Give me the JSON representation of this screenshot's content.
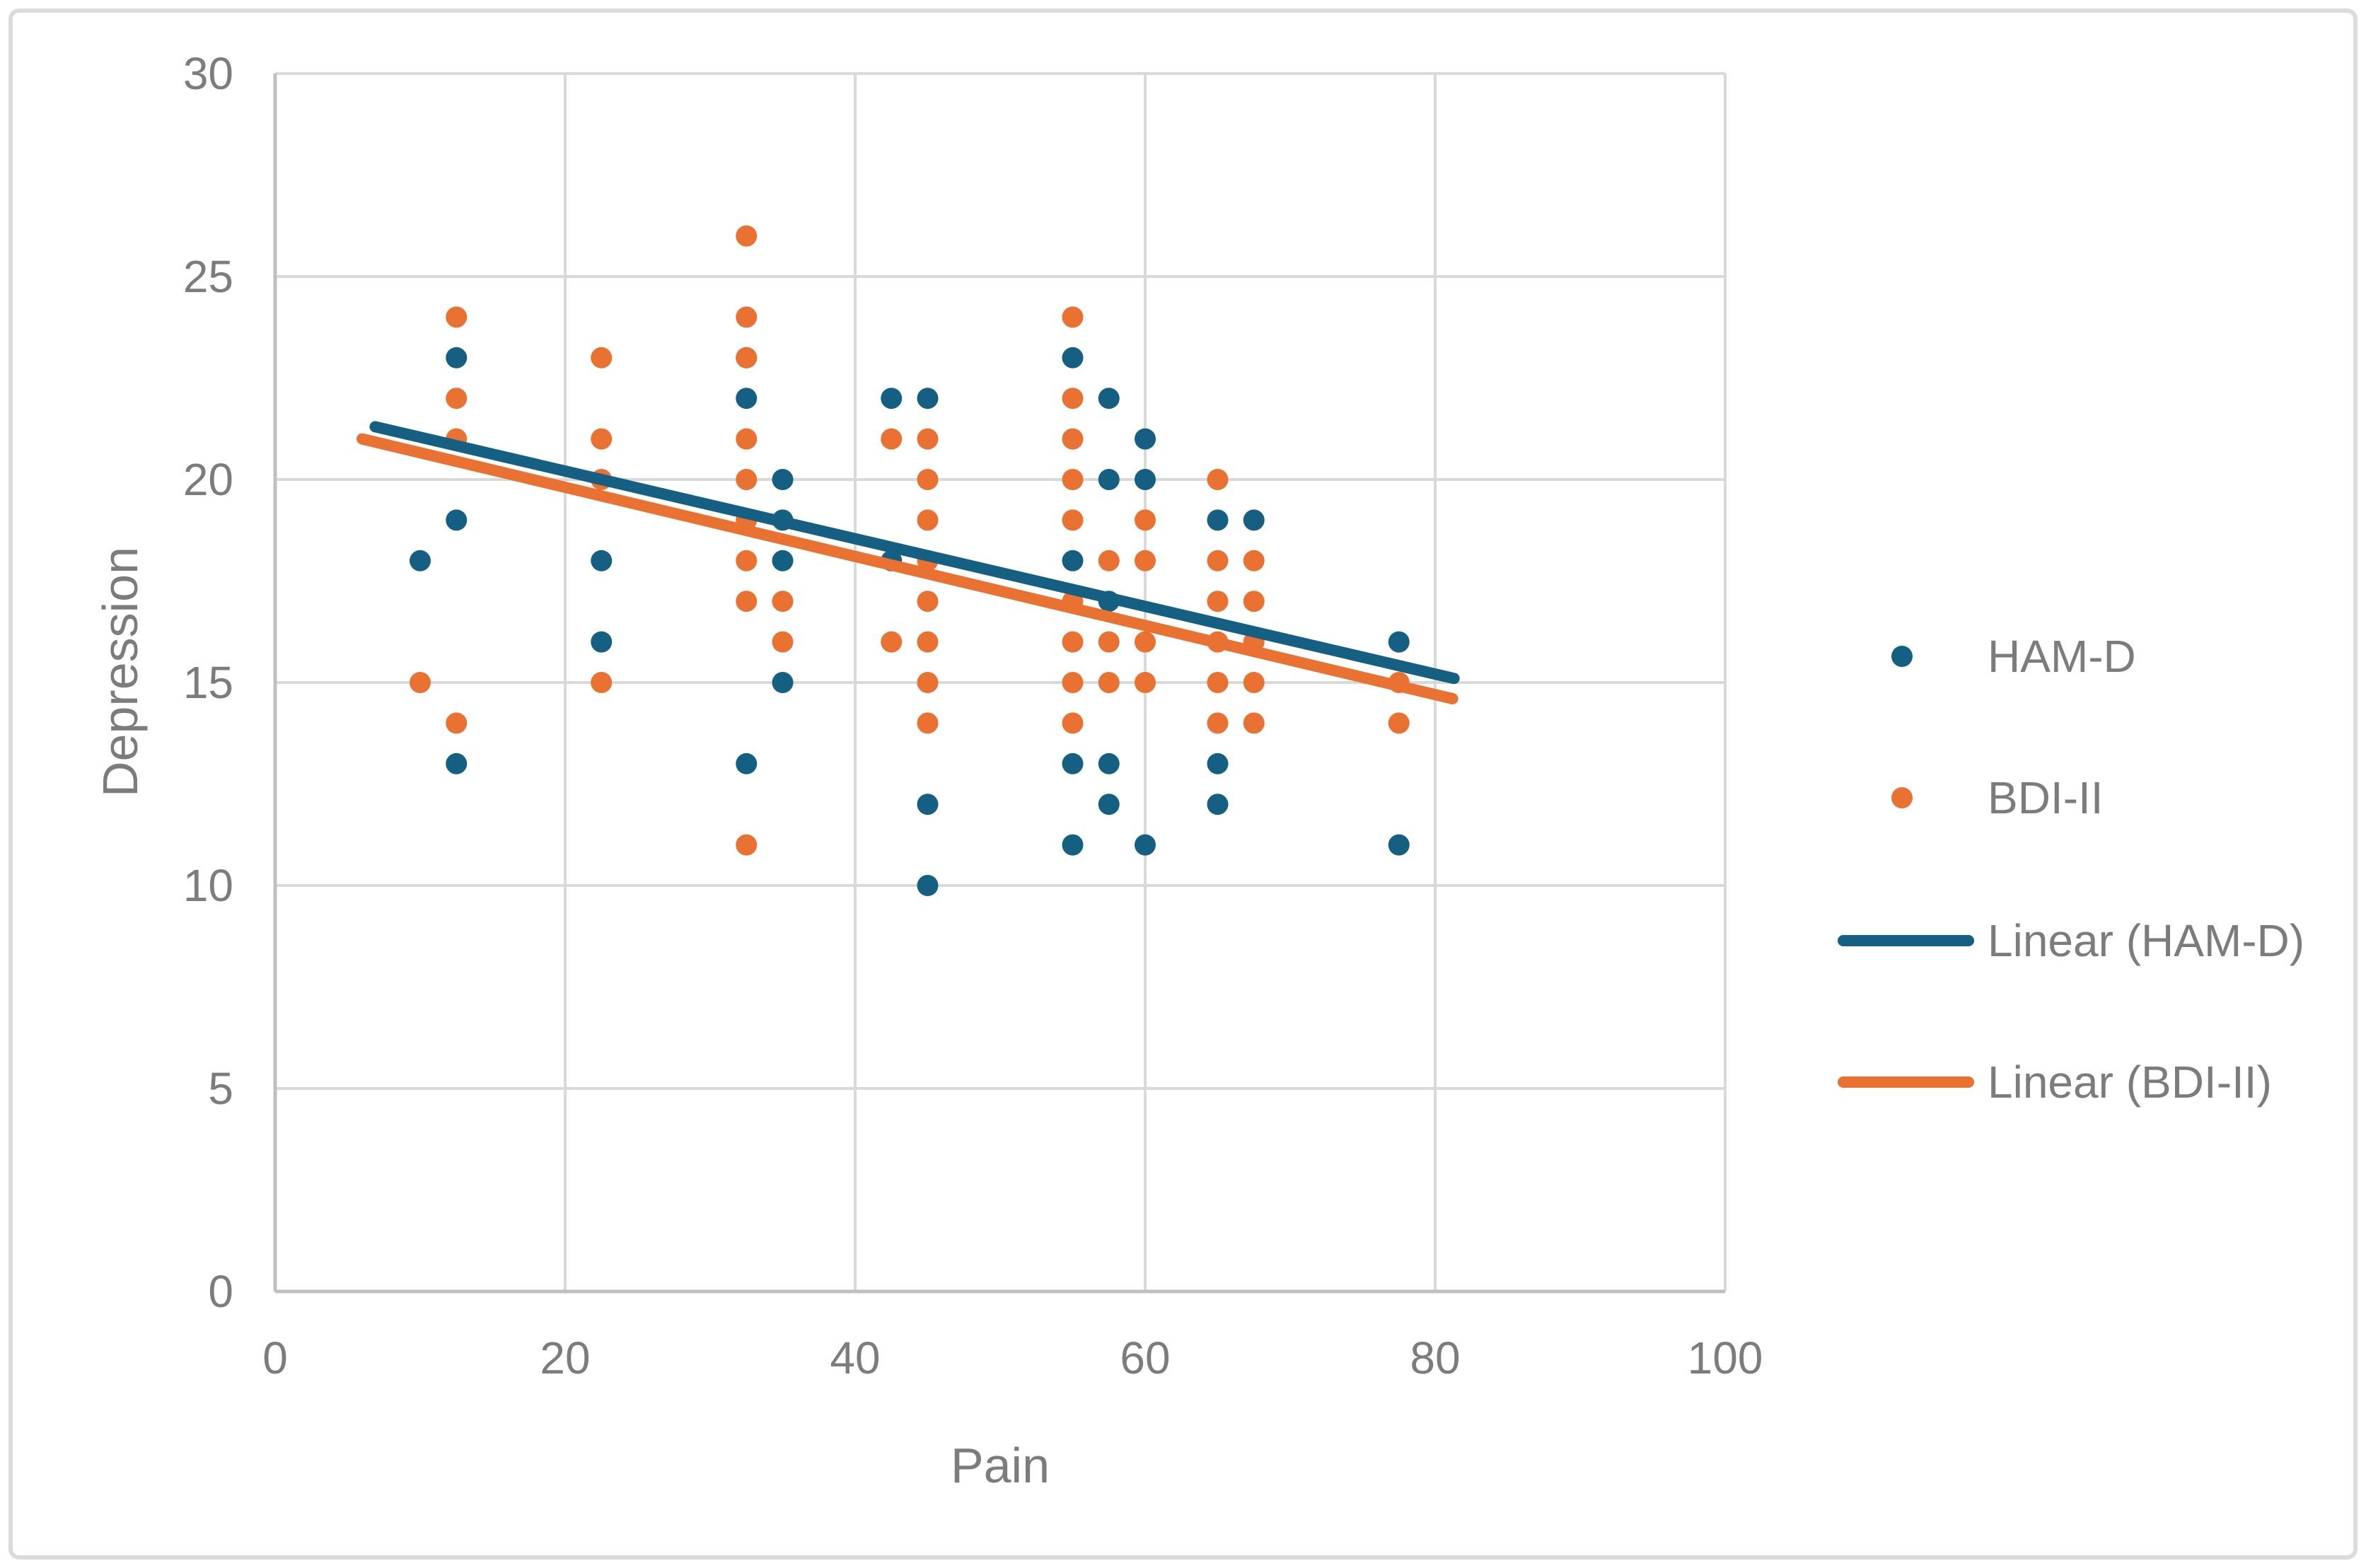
{
  "chart_data": {
    "type": "scatter",
    "title": "",
    "xlabel": "Pain",
    "ylabel": "Depression",
    "x_axis": {
      "min": 0,
      "max": 100,
      "step": 20,
      "ticks": [
        0,
        20,
        40,
        60,
        80,
        100
      ]
    },
    "y_axis": {
      "min": 0,
      "max": 30,
      "step": 5,
      "ticks": [
        0,
        5,
        10,
        15,
        20,
        25,
        30
      ]
    },
    "grid": true,
    "legend_position": "right",
    "series": [
      {
        "name": "HAM-D",
        "type": "scatter",
        "color": "#156082",
        "points": [
          [
            10,
            18
          ],
          [
            12.5,
            23
          ],
          [
            12.5,
            19
          ],
          [
            12.5,
            13
          ],
          [
            22.5,
            18
          ],
          [
            22.5,
            16
          ],
          [
            32.5,
            23
          ],
          [
            32.5,
            22
          ],
          [
            32.5,
            13
          ],
          [
            35,
            20
          ],
          [
            35,
            19
          ],
          [
            35,
            18
          ],
          [
            35,
            15
          ],
          [
            42.5,
            22
          ],
          [
            42.5,
            18
          ],
          [
            45,
            22
          ],
          [
            45,
            12
          ],
          [
            45,
            10
          ],
          [
            55,
            23
          ],
          [
            55,
            18
          ],
          [
            55,
            13
          ],
          [
            55,
            11
          ],
          [
            57.5,
            22
          ],
          [
            57.5,
            20
          ],
          [
            57.5,
            17
          ],
          [
            57.5,
            13
          ],
          [
            57.5,
            12
          ],
          [
            60,
            21
          ],
          [
            60,
            20
          ],
          [
            60,
            11
          ],
          [
            65,
            19
          ],
          [
            65,
            13
          ],
          [
            65,
            12
          ],
          [
            67.5,
            19
          ],
          [
            77.5,
            16
          ],
          [
            77.5,
            11
          ]
        ]
      },
      {
        "name": "BDI-II",
        "type": "scatter",
        "color": "#E97132",
        "points": [
          [
            10,
            15
          ],
          [
            12.5,
            24
          ],
          [
            12.5,
            22
          ],
          [
            12.5,
            21
          ],
          [
            12.5,
            14
          ],
          [
            22.5,
            23
          ],
          [
            22.5,
            21
          ],
          [
            22.5,
            20
          ],
          [
            22.5,
            15
          ],
          [
            32.5,
            26
          ],
          [
            32.5,
            24
          ],
          [
            32.5,
            23
          ],
          [
            32.5,
            21
          ],
          [
            32.5,
            20
          ],
          [
            32.5,
            19
          ],
          [
            32.5,
            18
          ],
          [
            32.5,
            17
          ],
          [
            32.5,
            11
          ],
          [
            35,
            17
          ],
          [
            35,
            16
          ],
          [
            42.5,
            21
          ],
          [
            42.5,
            16
          ],
          [
            45,
            21
          ],
          [
            45,
            20
          ],
          [
            45,
            19
          ],
          [
            45,
            18
          ],
          [
            45,
            17
          ],
          [
            45,
            16
          ],
          [
            45,
            15
          ],
          [
            45,
            14
          ],
          [
            55,
            24
          ],
          [
            55,
            22
          ],
          [
            55,
            21
          ],
          [
            55,
            20
          ],
          [
            55,
            19
          ],
          [
            55,
            17
          ],
          [
            55,
            16
          ],
          [
            55,
            15
          ],
          [
            55,
            14
          ],
          [
            57.5,
            18
          ],
          [
            57.5,
            16
          ],
          [
            57.5,
            15
          ],
          [
            60,
            19
          ],
          [
            60,
            18
          ],
          [
            60,
            16
          ],
          [
            60,
            15
          ],
          [
            65,
            20
          ],
          [
            65,
            18
          ],
          [
            65,
            17
          ],
          [
            65,
            16
          ],
          [
            65,
            15
          ],
          [
            65,
            14
          ],
          [
            67.5,
            18
          ],
          [
            67.5,
            17
          ],
          [
            67.5,
            16
          ],
          [
            67.5,
            15
          ],
          [
            67.5,
            14
          ],
          [
            77.5,
            15
          ],
          [
            77.5,
            14
          ]
        ]
      },
      {
        "name": "Linear (HAM-D)",
        "type": "trendline",
        "color": "#156082",
        "start": [
          6.9,
          21.3
        ],
        "end": [
          81.3,
          15.1
        ]
      },
      {
        "name": "Linear (BDI-II)",
        "type": "trendline",
        "color": "#E97132",
        "start": [
          6.0,
          21.0
        ],
        "end": [
          81.2,
          14.6
        ]
      }
    ]
  },
  "style": {
    "accent_blue": "#156082",
    "accent_orange": "#E97132",
    "gridline_color": "#D9D9D9",
    "axis_line_color": "#BFBFBF",
    "label_color": "#7C7C7C",
    "frame_border_color": "#DBDBDB",
    "background": "#FFFFFF"
  }
}
